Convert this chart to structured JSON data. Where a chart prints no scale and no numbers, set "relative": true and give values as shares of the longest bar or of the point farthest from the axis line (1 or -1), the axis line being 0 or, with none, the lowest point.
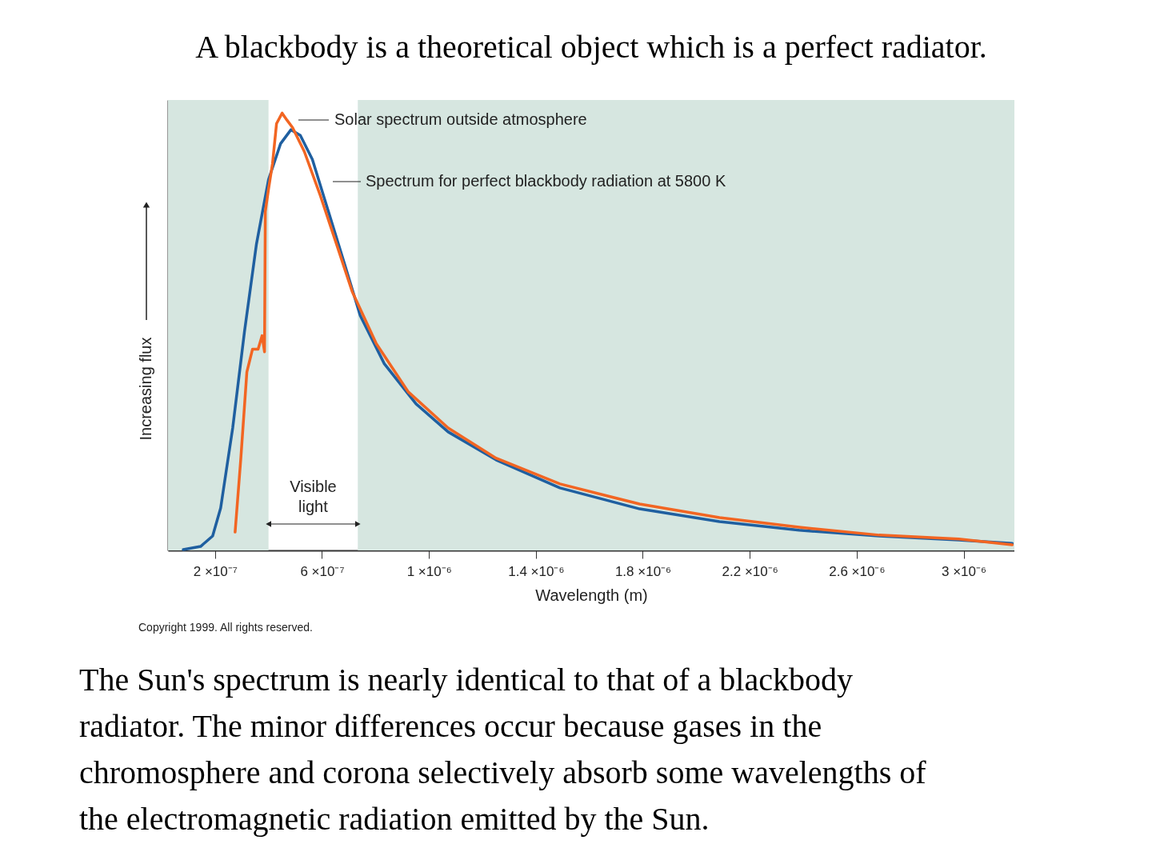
{
  "chart_data": {
    "type": "line",
    "relative": true,
    "title": "A blackbody is a theoretical object which is a perfect radiator.",
    "xlabel": "Wavelength (m)",
    "ylabel": "Increasing flux",
    "xlim": [
      2.4e-08,
      3.19e-06
    ],
    "xticks": [
      {
        "value": 2e-07,
        "label": "2 ×10⁻⁷"
      },
      {
        "value": 6e-07,
        "label": "6 ×10⁻⁷"
      },
      {
        "value": 1e-06,
        "label": "1 ×10⁻⁶"
      },
      {
        "value": 1.4e-06,
        "label": "1.4 ×10⁻⁶"
      },
      {
        "value": 1.8e-06,
        "label": "1.8 ×10⁻⁶"
      },
      {
        "value": 2.2e-06,
        "label": "2.2 ×10⁻⁶"
      },
      {
        "value": 2.6e-06,
        "label": "2.6 ×10⁻⁶"
      },
      {
        "value": 3e-06,
        "label": "3 ×10⁻⁶"
      }
    ],
    "series": [
      {
        "name": "Solar spectrum outside atmosphere",
        "color": "#f26522",
        "x": [
          2.75e-07,
          2.96e-07,
          3.19e-07,
          3.4e-07,
          3.61e-07,
          3.76e-07,
          3.85e-07,
          3.88e-07,
          4e-07,
          4.15e-07,
          4.3e-07,
          4.51e-07,
          4.69e-07,
          4.9e-07,
          5.34e-07,
          5.94e-07,
          6.54e-07,
          7.13e-07,
          8.03e-07,
          9.22e-07,
          1.072e-06,
          1.251e-06,
          1.49e-06,
          1.788e-06,
          2.087e-06,
          2.385e-06,
          2.684e-06,
          2.982e-06,
          3.182e-06
        ],
        "values": [
          0.042,
          0.207,
          0.408,
          0.46,
          0.46,
          0.491,
          0.454,
          0.775,
          0.826,
          0.885,
          0.976,
          1.0,
          0.984,
          0.967,
          0.912,
          0.811,
          0.701,
          0.592,
          0.473,
          0.363,
          0.28,
          0.211,
          0.152,
          0.106,
          0.075,
          0.053,
          0.035,
          0.026,
          0.013
        ]
      },
      {
        "name": "Spectrum for perfect blackbody radiation at 5800 K",
        "color": "#1f5fa0",
        "x": [
          8.1e-08,
          1.46e-07,
          1.91e-07,
          2.21e-07,
          2.66e-07,
          3.1e-07,
          3.55e-07,
          4e-07,
          4.45e-07,
          4.84e-07,
          5.19e-07,
          5.64e-07,
          6.24e-07,
          6.84e-07,
          7.43e-07,
          8.33e-07,
          9.52e-07,
          1.072e-06,
          1.251e-06,
          1.49e-06,
          1.788e-06,
          2.087e-06,
          2.385e-06,
          2.684e-06,
          2.982e-06,
          3.182e-06
        ],
        "values": [
          0.002,
          0.009,
          0.033,
          0.097,
          0.28,
          0.5,
          0.701,
          0.848,
          0.93,
          0.962,
          0.949,
          0.894,
          0.775,
          0.656,
          0.537,
          0.427,
          0.335,
          0.271,
          0.207,
          0.143,
          0.095,
          0.066,
          0.046,
          0.033,
          0.024,
          0.016
        ]
      }
    ],
    "bands": [
      {
        "axis": "x",
        "from": 2.4e-08,
        "to": 4e-07,
        "color": "#d6e6e0"
      },
      {
        "axis": "x",
        "from": 7.34e-07,
        "to": 3.19e-06,
        "color": "#d6e6e0"
      }
    ],
    "annotations": [
      "Visible\nlight",
      "Copyright 1999. All rights reserved.",
      "The Sun's spectrum is nearly identical to that of a blackbody radiator. The minor differences occur because gases in the chromosphere and corona selectively absorb some wavelengths of the electromagnetic radiation emitted by the Sun."
    ],
    "grid": false,
    "line_style": "solid",
    "marker": "none"
  }
}
